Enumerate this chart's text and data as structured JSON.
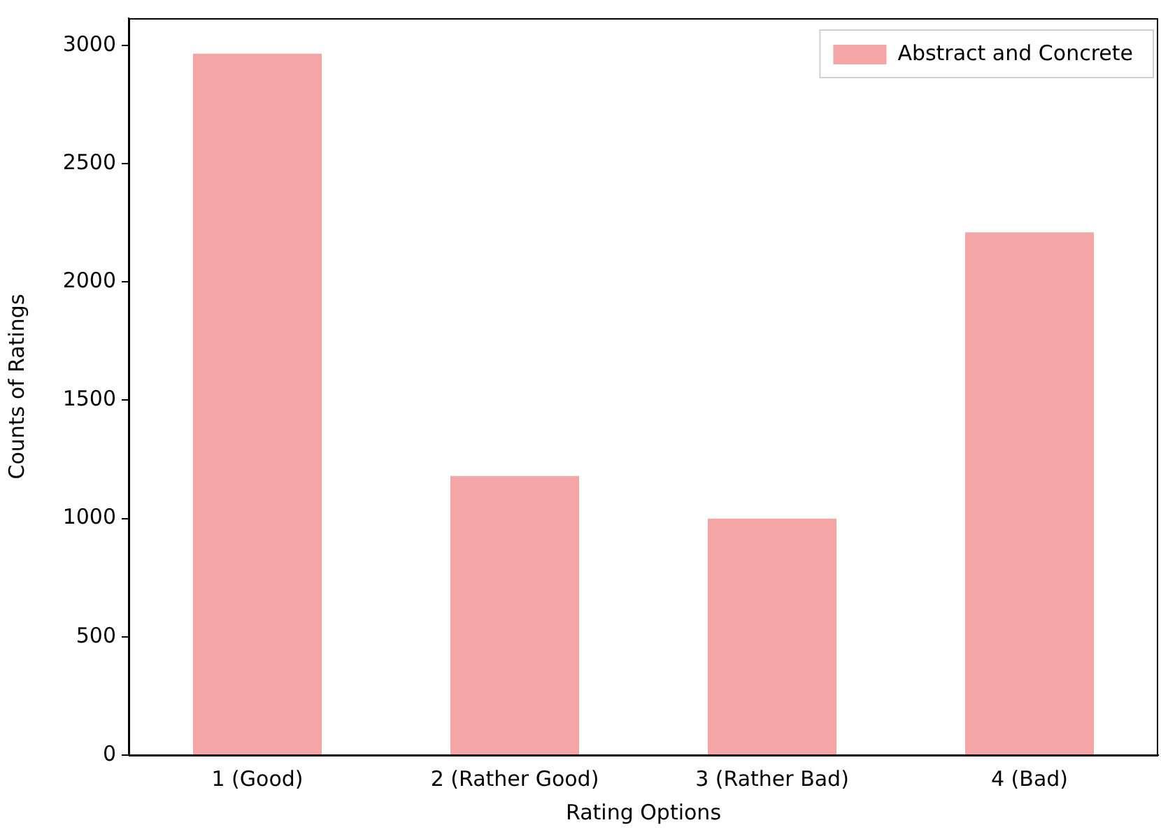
{
  "chart_data": {
    "type": "bar",
    "xlabel": "Rating Options",
    "ylabel": "Counts of Ratings",
    "categories": [
      "1 (Good)",
      "2 (Rather Good)",
      "3 (Rather Bad)",
      "4 (Bad)"
    ],
    "series": [
      {
        "name": "Abstract and Concrete",
        "color": "#f4a6a6",
        "values": [
          2965,
          1180,
          1000,
          2210
        ]
      }
    ],
    "ylim": [
      0,
      3115
    ],
    "yticks": [
      0,
      500,
      1000,
      1500,
      2000,
      2500,
      3000
    ],
    "grid": false,
    "legend": "top right"
  }
}
